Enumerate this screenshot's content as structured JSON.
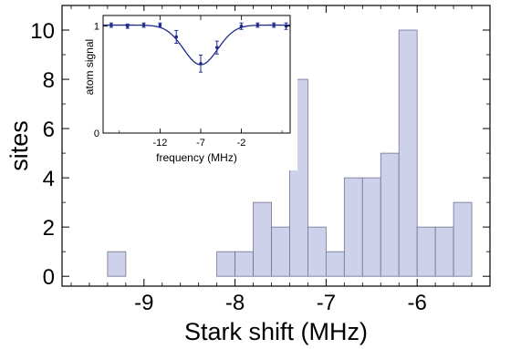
{
  "chart_data": [
    {
      "type": "bar",
      "xlabel": "Stark shift (MHz)",
      "ylabel": "sites",
      "xlim": [
        -9.9,
        -5.2
      ],
      "ylim": [
        -0.4,
        11.0
      ],
      "xticks": [
        -9,
        -8,
        -7,
        -6
      ],
      "xtick_labels": [
        "-9",
        "-8",
        "-7",
        "-6"
      ],
      "yticks": [
        0,
        2,
        4,
        6,
        8,
        10
      ],
      "ytick_labels": [
        "0",
        "2",
        "4",
        "6",
        "8",
        "10"
      ],
      "bin_width": 0.2,
      "bins": [
        {
          "left": -9.4,
          "right": -9.2,
          "count": 1
        },
        {
          "left": -8.2,
          "right": -8.0,
          "count": 1
        },
        {
          "left": -8.0,
          "right": -7.8,
          "count": 1
        },
        {
          "left": -7.8,
          "right": -7.6,
          "count": 3
        },
        {
          "left": -7.6,
          "right": -7.4,
          "count": 2
        },
        {
          "left": -7.4,
          "right": -7.2,
          "count": 8
        },
        {
          "left": -7.2,
          "right": -7.0,
          "count": 2
        },
        {
          "left": -7.0,
          "right": -6.8,
          "count": 1
        },
        {
          "left": -6.8,
          "right": -6.6,
          "count": 4
        },
        {
          "left": -6.6,
          "right": -6.4,
          "count": 4
        },
        {
          "left": -6.4,
          "right": -6.2,
          "count": 5
        },
        {
          "left": -6.2,
          "right": -6.0,
          "count": 10
        },
        {
          "left": -6.0,
          "right": -5.8,
          "count": 2
        },
        {
          "left": -5.8,
          "right": -5.6,
          "count": 2
        },
        {
          "left": -5.6,
          "right": -5.4,
          "count": 3
        }
      ],
      "bar_color": "#cdd2ea",
      "bar_edge_color": "#6f7390",
      "grid": false
    },
    {
      "type": "scatter",
      "inset": true,
      "xlabel": "frequency (MHz)",
      "ylabel": "atom signal",
      "xlim": [
        -19,
        4
      ],
      "ylim": [
        0,
        1.1
      ],
      "xticks": [
        -12,
        -7,
        -2
      ],
      "xtick_labels": [
        "-12",
        "-7",
        "-2"
      ],
      "yticks": [
        0,
        1
      ],
      "ytick_labels": [
        "0",
        "1"
      ],
      "points": [
        {
          "x": -18,
          "y": 1.01,
          "err": 0.02
        },
        {
          "x": -16,
          "y": 1.0,
          "err": 0.02
        },
        {
          "x": -14,
          "y": 1.01,
          "err": 0.02
        },
        {
          "x": -12,
          "y": 1.01,
          "err": 0.02
        },
        {
          "x": -10,
          "y": 0.9,
          "err": 0.06
        },
        {
          "x": -7,
          "y": 0.65,
          "err": 0.08
        },
        {
          "x": -5,
          "y": 0.8,
          "err": 0.06
        },
        {
          "x": -2,
          "y": 1.0,
          "err": 0.03
        },
        {
          "x": 0,
          "y": 1.01,
          "err": 0.02
        },
        {
          "x": 2,
          "y": 1.01,
          "err": 0.02
        },
        {
          "x": 3.5,
          "y": 1.0,
          "err": 0.03
        }
      ],
      "fit": {
        "type": "gaussian_dip",
        "baseline": 1.01,
        "center": -7.0,
        "depth": 0.37,
        "sigma": 2.1
      },
      "color": "#1f2a8c",
      "grid": false
    }
  ]
}
